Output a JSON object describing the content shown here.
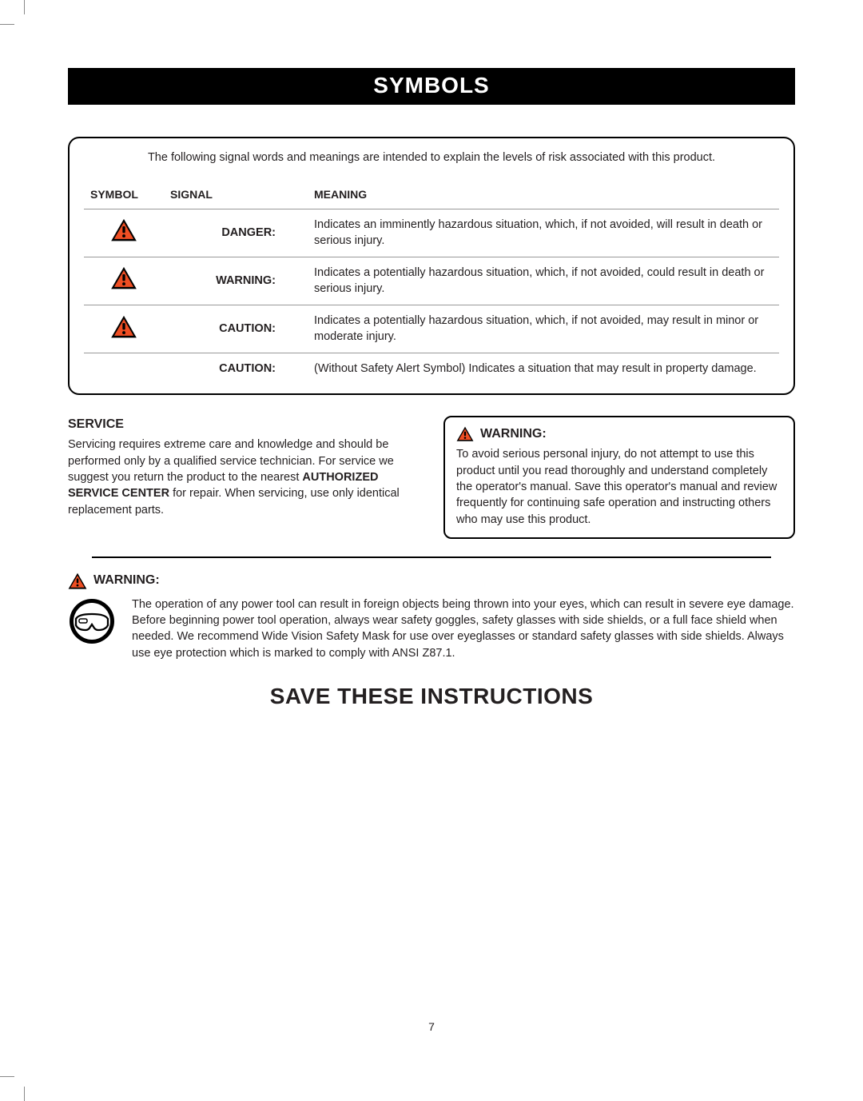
{
  "title": "SYMBOLS",
  "intro": "The following signal words and meanings are intended to explain the levels of risk associated with this product.",
  "headers": {
    "symbol": "SYMBOL",
    "signal": "SIGNAL",
    "meaning": "MEANING"
  },
  "rows": [
    {
      "has_icon": true,
      "signal": "DANGER:",
      "meaning": "Indicates an imminently hazardous situation, which, if not avoided, will result in death or serious injury."
    },
    {
      "has_icon": true,
      "signal": "WARNING:",
      "meaning": "Indicates a potentially hazardous situation, which, if not avoided, could result in death or serious injury."
    },
    {
      "has_icon": true,
      "signal": "CAUTION:",
      "meaning": "Indicates a potentially hazardous situation, which, if not avoided, may result in minor or moderate injury."
    },
    {
      "has_icon": false,
      "signal": "CAUTION:",
      "meaning": "(Without Safety Alert Symbol) Indicates a situation that may result in property damage."
    }
  ],
  "service": {
    "heading": "SERVICE",
    "text_pre": "Servicing requires extreme care and knowledge and should be performed only by a qualified service technician. For service we suggest you return the product to the nearest ",
    "bold": "AUTHORIZED SERVICE CENTER",
    "text_post": " for repair. When servicing, use only identical replacement parts."
  },
  "warning_box": {
    "heading": "WARNING:",
    "text": "To avoid serious personal injury, do not attempt to use this product until you read thoroughly and understand completely the operator's manual. Save this operator's manual and review frequently for continuing safe operation and instructing others who may use this product."
  },
  "bottom_warning": {
    "heading": "WARNING:",
    "text": "The operation of any power tool can result in foreign objects being thrown into your eyes, which can result in severe eye damage. Before beginning power tool operation, always wear safety goggles, safety glasses with side shields, or a full face shield when needed. We recommend Wide Vision Safety Mask for use over eyeglasses or standard safety glasses with side shields. Always use eye protection which is marked to comply with ANSI Z87.1."
  },
  "save": "SAVE THESE INSTRUCTIONS",
  "page_number": "7",
  "colors": {
    "icon_bg": "#000000",
    "icon_mark": "#ef4e23",
    "text": "#231f20"
  }
}
